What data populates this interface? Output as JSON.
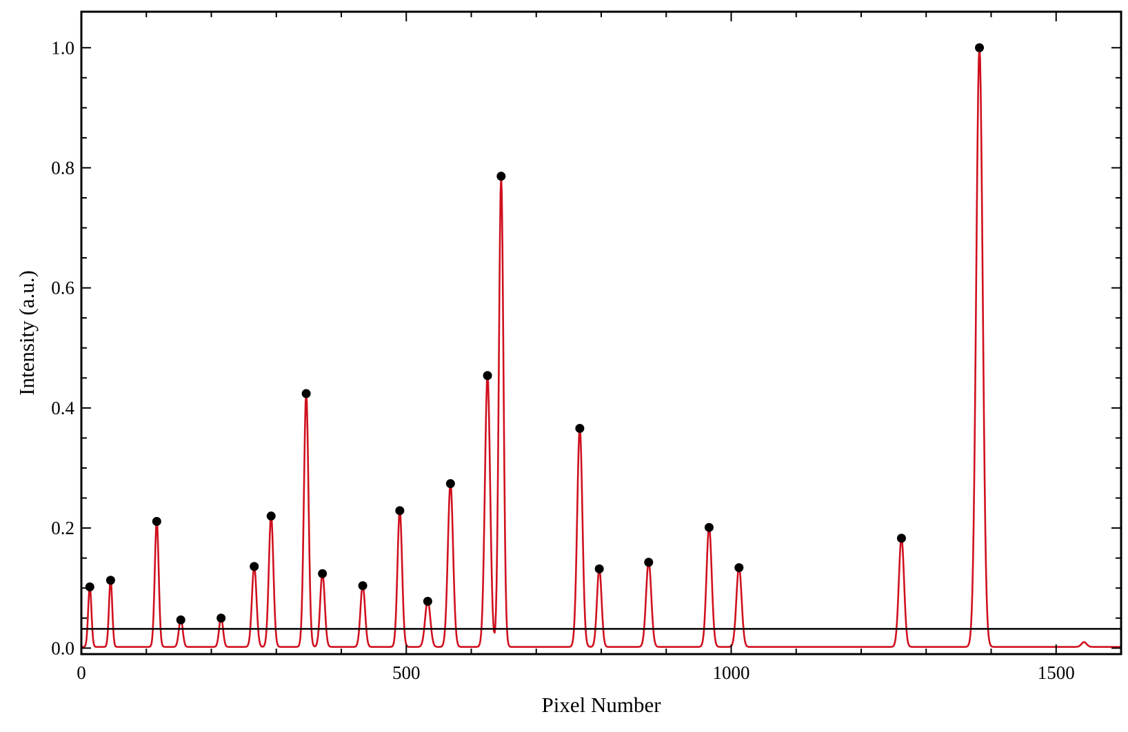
{
  "chart_data": {
    "type": "line",
    "title": "",
    "xlabel": "Pixel Number",
    "ylabel": "Intensity (a.u.)",
    "xlim": [
      0,
      1600
    ],
    "ylim": [
      -0.01,
      1.06
    ],
    "xticks": [
      0,
      500,
      1000,
      1500
    ],
    "xtick_labels": [
      "0",
      "500",
      "1000",
      "1500"
    ],
    "yticks": [
      0.0,
      0.2,
      0.4,
      0.6,
      0.8,
      1.0
    ],
    "ytick_labels": [
      "0.0",
      "0.2",
      "0.4",
      "0.6",
      "0.8",
      "1.0"
    ],
    "grid": false,
    "threshold": 0.032,
    "colors": {
      "spectrum": "#d0101e",
      "peaks": "#000000",
      "threshold": "#000000",
      "frame": "#000000"
    },
    "series": [
      {
        "type": "line",
        "baseline": 0.002,
        "peaks": [
          {
            "x": 13,
            "y": 0.102,
            "w": 2.5
          },
          {
            "x": 45,
            "y": 0.113,
            "w": 2.5
          },
          {
            "x": 116,
            "y": 0.211,
            "w": 3
          },
          {
            "x": 153,
            "y": 0.047,
            "w": 3
          },
          {
            "x": 215,
            "y": 0.05,
            "w": 3
          },
          {
            "x": 266,
            "y": 0.136,
            "w": 3.5
          },
          {
            "x": 292,
            "y": 0.22,
            "w": 3.5
          },
          {
            "x": 346,
            "y": 0.424,
            "w": 3.5
          },
          {
            "x": 371,
            "y": 0.124,
            "w": 3.5
          },
          {
            "x": 433,
            "y": 0.104,
            "w": 3.5
          },
          {
            "x": 490,
            "y": 0.229,
            "w": 3.5
          },
          {
            "x": 533,
            "y": 0.078,
            "w": 4
          },
          {
            "x": 568,
            "y": 0.274,
            "w": 4
          },
          {
            "x": 625,
            "y": 0.454,
            "w": 4
          },
          {
            "x": 646,
            "y": 0.786,
            "w": 3.5
          },
          {
            "x": 767,
            "y": 0.366,
            "w": 4
          },
          {
            "x": 797,
            "y": 0.132,
            "w": 3.5
          },
          {
            "x": 873,
            "y": 0.143,
            "w": 4
          },
          {
            "x": 966,
            "y": 0.201,
            "w": 4
          },
          {
            "x": 1012,
            "y": 0.134,
            "w": 4
          },
          {
            "x": 1262,
            "y": 0.183,
            "w": 4
          },
          {
            "x": 1382,
            "y": 1.0,
            "w": 5
          },
          {
            "x": 1543,
            "y": 0.008,
            "w": 4
          }
        ]
      },
      {
        "type": "scatter",
        "x": [
          13,
          45,
          116,
          153,
          215,
          266,
          292,
          346,
          371,
          433,
          490,
          533,
          568,
          625,
          646,
          767,
          797,
          873,
          966,
          1012,
          1262,
          1382
        ],
        "y": [
          0.102,
          0.113,
          0.211,
          0.047,
          0.05,
          0.136,
          0.22,
          0.424,
          0.124,
          0.104,
          0.229,
          0.078,
          0.274,
          0.454,
          0.786,
          0.366,
          0.132,
          0.143,
          0.201,
          0.134,
          0.183,
          1.0
        ]
      }
    ]
  }
}
